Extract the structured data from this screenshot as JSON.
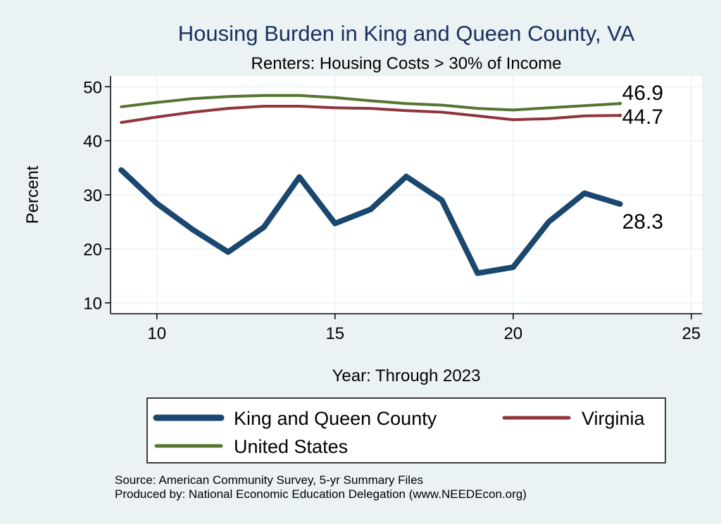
{
  "chart_data": {
    "type": "line",
    "title": "Housing Burden in King and Queen County, VA",
    "subtitle": "Renters: Housing Costs > 30% of Income",
    "xlabel": "Year: Through 2023",
    "ylabel": "Percent",
    "xlim": [
      8.7,
      25.3
    ],
    "ylim": [
      8,
      52
    ],
    "x_ticks": [
      10,
      15,
      20,
      25
    ],
    "y_ticks": [
      10,
      20,
      30,
      40,
      50
    ],
    "grid": true,
    "legend_position": "bottom",
    "x": [
      9,
      10,
      11,
      12,
      13,
      14,
      15,
      16,
      17,
      18,
      19,
      20,
      21,
      22,
      23
    ],
    "series": [
      {
        "name": "King and Queen County",
        "color": "#1a476f",
        "values": [
          34.6,
          28.4,
          23.6,
          19.4,
          24.0,
          33.3,
          24.7,
          27.3,
          33.4,
          29.0,
          15.5,
          16.6,
          25.0,
          30.3,
          28.3
        ],
        "end_label": "28.3"
      },
      {
        "name": "Virginia",
        "color": "#90353b",
        "values": [
          43.4,
          44.4,
          45.3,
          46.0,
          46.4,
          46.4,
          46.1,
          46.0,
          45.6,
          45.3,
          44.6,
          43.9,
          44.1,
          44.6,
          44.7
        ],
        "end_label": "44.7"
      },
      {
        "name": "United States",
        "color": "#55752f",
        "values": [
          46.3,
          47.1,
          47.8,
          48.2,
          48.4,
          48.4,
          48.0,
          47.4,
          46.9,
          46.6,
          46.0,
          45.7,
          46.1,
          46.5,
          46.9
        ],
        "end_label": "46.9"
      }
    ]
  },
  "footnotes": {
    "source": "Source: American Community Survey, 5-yr Summary Files",
    "producer": "Produced by: National Economic Education Delegation (www.NEEDEcon.org)"
  }
}
